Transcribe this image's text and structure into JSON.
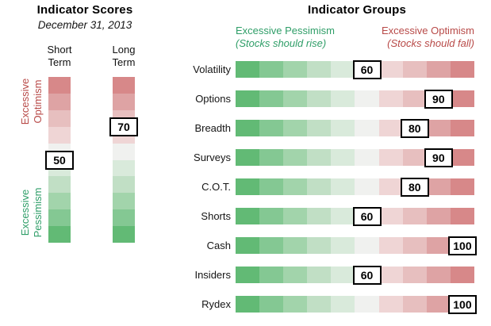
{
  "chart_data": [
    {
      "type": "bar",
      "orientation": "vertical",
      "title": "Indicator Scores",
      "subtitle": "December 31, 2013",
      "categories": [
        "Short Term",
        "Long Term"
      ],
      "values": [
        50,
        70
      ],
      "ylim": [
        0,
        100
      ],
      "scale_high_label": "Excessive Optimism",
      "scale_low_label": "Excessive Pessimism",
      "legend_position": "none",
      "grid": false
    },
    {
      "type": "bar",
      "orientation": "horizontal",
      "title": "Indicator Groups",
      "categories": [
        "Volatility",
        "Options",
        "Breadth",
        "Surveys",
        "C.O.T.",
        "Shorts",
        "Cash",
        "Insiders",
        "Rydex"
      ],
      "values": [
        60,
        90,
        80,
        90,
        80,
        60,
        100,
        60,
        100
      ],
      "xlim": [
        0,
        100
      ],
      "scale_low_label": "Excessive Pessimism (Stocks should rise)",
      "scale_high_label": "Excessive Optimism (Stocks should fall)",
      "legend_position": "none",
      "grid": false
    }
  ],
  "scores_panel": {
    "optimism_label": "Excessive Optimism",
    "pessimism_label": "Excessive Pessimism"
  },
  "groups_panel": {
    "pessimism_header": "Excessive Pessimism",
    "pessimism_sub": "(Stocks should rise)",
    "optimism_header": "Excessive Optimism",
    "optimism_sub": "(Stocks should fall)"
  },
  "colors": {
    "gradient_green_to_red": [
      "#62ba75",
      "#84c893",
      "#a2d4ab",
      "#c1dfc5",
      "#d9eadb",
      "#f0f1ef",
      "#efd5d5",
      "#e7bfbf",
      "#dea3a4",
      "#d78889"
    ],
    "pessimism_text": "#2f9e68",
    "optimism_text": "#b84a48",
    "value_box_bg": "#ffffff",
    "value_box_border": "#000000"
  }
}
